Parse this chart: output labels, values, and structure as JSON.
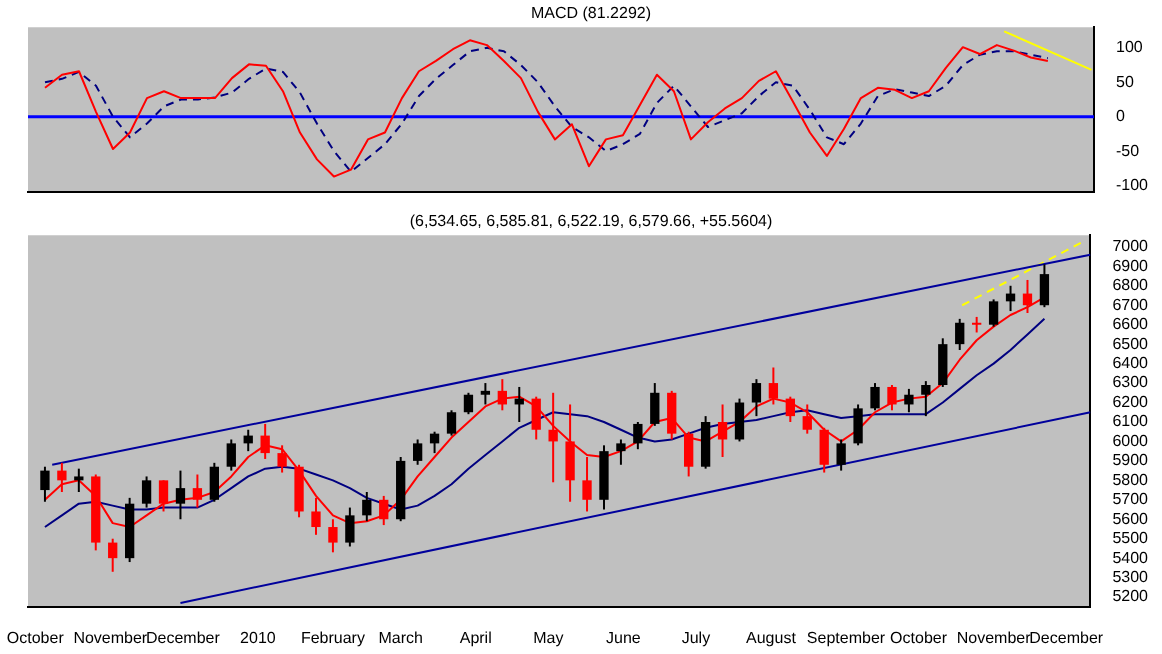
{
  "chart_data": [
    {
      "type": "line",
      "title": "MACD (81.2292)",
      "x": [
        "2009-10-05",
        "2009-10-12",
        "2009-10-19",
        "2009-10-26",
        "2009-11-02",
        "2009-11-09",
        "2009-11-16",
        "2009-11-23",
        "2009-11-30",
        "2009-12-07",
        "2009-12-14",
        "2009-12-21",
        "2009-12-28",
        "2010-01-04",
        "2010-01-11",
        "2010-01-18",
        "2010-01-25",
        "2010-02-01",
        "2010-02-08",
        "2010-02-15",
        "2010-02-22",
        "2010-03-01",
        "2010-03-08",
        "2010-03-15",
        "2010-03-22",
        "2010-03-29",
        "2010-04-05",
        "2010-04-12",
        "2010-04-19",
        "2010-04-26",
        "2010-05-03",
        "2010-05-10",
        "2010-05-17",
        "2010-05-24",
        "2010-05-31",
        "2010-06-07",
        "2010-06-14",
        "2010-06-21",
        "2010-06-28",
        "2010-07-05",
        "2010-07-12",
        "2010-07-19",
        "2010-07-26",
        "2010-08-02",
        "2010-08-09",
        "2010-08-16",
        "2010-08-23",
        "2010-08-30",
        "2010-09-06",
        "2010-09-13",
        "2010-09-20",
        "2010-09-27",
        "2010-10-04",
        "2010-10-11",
        "2010-10-18",
        "2010-10-25",
        "2010-11-01",
        "2010-11-08",
        "2010-11-15",
        "2010-11-22"
      ],
      "series": [
        {
          "color": "#ff0000",
          "values": [
            42,
            61,
            66,
            7,
            -47,
            -23,
            27,
            37,
            27,
            27,
            27,
            56,
            76,
            74,
            37,
            -23,
            -62,
            -87,
            -77,
            -33,
            -23,
            27,
            66,
            81,
            98,
            111,
            104,
            81,
            56,
            7,
            -33,
            -11,
            -72,
            -33,
            -27,
            17,
            61,
            37,
            -33,
            -8,
            12,
            27,
            52,
            66,
            22,
            -23,
            -57,
            -18,
            27,
            42,
            39,
            27,
            37,
            71,
            101,
            91,
            104,
            96,
            86,
            81
          ]
        },
        {
          "color": "#000080",
          "line_style": "dashed",
          "values": [
            50,
            55,
            65,
            45,
            0,
            -30,
            -10,
            15,
            25,
            25,
            28,
            35,
            55,
            70,
            65,
            35,
            -10,
            -50,
            -80,
            -60,
            -40,
            -10,
            30,
            55,
            75,
            95,
            100,
            95,
            75,
            50,
            15,
            -15,
            -30,
            -50,
            -40,
            -25,
            20,
            45,
            15,
            -15,
            -5,
            5,
            30,
            50,
            45,
            10,
            -30,
            -40,
            -10,
            30,
            40,
            35,
            30,
            45,
            75,
            90,
            95,
            95,
            90,
            85
          ]
        },
        {
          "color": "#ffff00",
          "x": [
            "2010-11-04",
            "2010-12-10"
          ],
          "values": [
            124,
            68
          ]
        }
      ],
      "ref_lines": [
        {
          "axis": "y",
          "value": 0,
          "color": "#0000ff"
        }
      ],
      "xlim": [
        "2009-09-28",
        "2010-12-11"
      ],
      "ylim": [
        -110,
        130
      ],
      "yticks": [
        -100,
        -50,
        0,
        50,
        100
      ],
      "tick_labels": "y",
      "legend": false,
      "grid": false
    },
    {
      "type": "candlestick",
      "title": "(6,534.65, 6,585.81, 6,522.19, 6,579.66, +55.5604)",
      "x": [
        "2009-10-05",
        "2009-10-12",
        "2009-10-19",
        "2009-10-26",
        "2009-11-02",
        "2009-11-09",
        "2009-11-16",
        "2009-11-23",
        "2009-11-30",
        "2009-12-07",
        "2009-12-14",
        "2009-12-21",
        "2009-12-28",
        "2010-01-04",
        "2010-01-11",
        "2010-01-18",
        "2010-01-25",
        "2010-02-01",
        "2010-02-08",
        "2010-02-15",
        "2010-02-22",
        "2010-03-01",
        "2010-03-08",
        "2010-03-15",
        "2010-03-22",
        "2010-03-29",
        "2010-04-05",
        "2010-04-12",
        "2010-04-19",
        "2010-04-26",
        "2010-05-03",
        "2010-05-10",
        "2010-05-17",
        "2010-05-24",
        "2010-05-31",
        "2010-06-07",
        "2010-06-14",
        "2010-06-21",
        "2010-06-28",
        "2010-07-05",
        "2010-07-12",
        "2010-07-19",
        "2010-07-26",
        "2010-08-02",
        "2010-08-09",
        "2010-08-16",
        "2010-08-23",
        "2010-08-30",
        "2010-09-06",
        "2010-09-13",
        "2010-09-20",
        "2010-09-27",
        "2010-10-04",
        "2010-10-11",
        "2010-10-18",
        "2010-10-25",
        "2010-11-01",
        "2010-11-08",
        "2010-11-15",
        "2010-11-22"
      ],
      "ohlc": [
        [
          5750,
          5870,
          5690,
          5850
        ],
        [
          5850,
          5890,
          5740,
          5800
        ],
        [
          5800,
          5860,
          5740,
          5820
        ],
        [
          5820,
          5830,
          5440,
          5480
        ],
        [
          5480,
          5500,
          5330,
          5400
        ],
        [
          5400,
          5710,
          5380,
          5680
        ],
        [
          5680,
          5820,
          5660,
          5800
        ],
        [
          5800,
          5800,
          5640,
          5680
        ],
        [
          5680,
          5850,
          5600,
          5760
        ],
        [
          5760,
          5830,
          5660,
          5700
        ],
        [
          5700,
          5890,
          5690,
          5870
        ],
        [
          5870,
          6010,
          5850,
          5990
        ],
        [
          5990,
          6060,
          5950,
          6030
        ],
        [
          6030,
          6090,
          5910,
          5940
        ],
        [
          5940,
          5980,
          5840,
          5870
        ],
        [
          5870,
          5880,
          5610,
          5640
        ],
        [
          5640,
          5710,
          5520,
          5560
        ],
        [
          5560,
          5600,
          5430,
          5480
        ],
        [
          5480,
          5660,
          5460,
          5620
        ],
        [
          5620,
          5740,
          5590,
          5700
        ],
        [
          5700,
          5720,
          5570,
          5600
        ],
        [
          5600,
          5920,
          5590,
          5900
        ],
        [
          5900,
          6010,
          5880,
          5990
        ],
        [
          5990,
          6050,
          5940,
          6040
        ],
        [
          6040,
          6160,
          6030,
          6150
        ],
        [
          6150,
          6250,
          6140,
          6240
        ],
        [
          6240,
          6300,
          6190,
          6260
        ],
        [
          6260,
          6320,
          6160,
          6190
        ],
        [
          6190,
          6280,
          6100,
          6220
        ],
        [
          6220,
          6230,
          6010,
          6060
        ],
        [
          6060,
          6250,
          5790,
          6000
        ],
        [
          6000,
          6190,
          5690,
          5800
        ],
        [
          5800,
          5920,
          5640,
          5700
        ],
        [
          5700,
          5980,
          5650,
          5950
        ],
        [
          5950,
          6010,
          5880,
          5990
        ],
        [
          5990,
          6100,
          5960,
          6090
        ],
        [
          6090,
          6300,
          6080,
          6250
        ],
        [
          6250,
          6260,
          6010,
          6040
        ],
        [
          6040,
          6050,
          5820,
          5870
        ],
        [
          5870,
          6130,
          5860,
          6100
        ],
        [
          6100,
          6190,
          5920,
          6010
        ],
        [
          6010,
          6220,
          6000,
          6200
        ],
        [
          6200,
          6320,
          6130,
          6300
        ],
        [
          6300,
          6380,
          6190,
          6220
        ],
        [
          6220,
          6230,
          6100,
          6130
        ],
        [
          6130,
          6190,
          6040,
          6060
        ],
        [
          6060,
          6070,
          5840,
          5880
        ],
        [
          5880,
          6010,
          5850,
          5990
        ],
        [
          5990,
          6190,
          5980,
          6170
        ],
        [
          6170,
          6300,
          6160,
          6280
        ],
        [
          6280,
          6290,
          6160,
          6190
        ],
        [
          6190,
          6270,
          6150,
          6240
        ],
        [
          6240,
          6310,
          6130,
          6290
        ],
        [
          6290,
          6530,
          6280,
          6500
        ],
        [
          6500,
          6630,
          6470,
          6610
        ],
        [
          6610,
          6640,
          6560,
          6600
        ],
        [
          6600,
          6730,
          6590,
          6720
        ],
        [
          6720,
          6800,
          6670,
          6760
        ],
        [
          6760,
          6830,
          6660,
          6700
        ],
        [
          6700,
          6910,
          6690,
          6860
        ]
      ],
      "colors": [
        "#000000",
        "#ff0000",
        "#000000",
        "#ff0000",
        "#ff0000",
        "#000000",
        "#000000",
        "#ff0000",
        "#000000",
        "#ff0000",
        "#000000",
        "#000000",
        "#000000",
        "#ff0000",
        "#ff0000",
        "#ff0000",
        "#ff0000",
        "#ff0000",
        "#000000",
        "#000000",
        "#ff0000",
        "#000000",
        "#000000",
        "#000000",
        "#000000",
        "#000000",
        "#000000",
        "#ff0000",
        "#000000",
        "#ff0000",
        "#ff0000",
        "#ff0000",
        "#ff0000",
        "#000000",
        "#000000",
        "#000000",
        "#000000",
        "#ff0000",
        "#ff0000",
        "#000000",
        "#ff0000",
        "#000000",
        "#000000",
        "#ff0000",
        "#ff0000",
        "#ff0000",
        "#ff0000",
        "#000000",
        "#000000",
        "#000000",
        "#ff0000",
        "#000000",
        "#000000",
        "#000000",
        "#000000",
        "#ff0000",
        "#000000",
        "#000000",
        "#ff0000",
        "#000000"
      ],
      "series": [
        {
          "type": "line",
          "color": "#ff0000",
          "values": [
            5700,
            5780,
            5800,
            5720,
            5580,
            5560,
            5620,
            5680,
            5700,
            5710,
            5740,
            5820,
            5920,
            5980,
            5960,
            5850,
            5720,
            5620,
            5580,
            5590,
            5620,
            5700,
            5820,
            5920,
            6020,
            6100,
            6180,
            6220,
            6230,
            6180,
            6080,
            6000,
            5930,
            5920,
            5950,
            6000,
            6100,
            6120,
            6020,
            6000,
            6050,
            6100,
            6180,
            6220,
            6200,
            6150,
            6060,
            6000,
            6060,
            6150,
            6200,
            6220,
            6230,
            6300,
            6420,
            6520,
            6590,
            6650,
            6690,
            6740
          ]
        },
        {
          "type": "line",
          "color": "#000080",
          "values": [
            5560,
            5620,
            5680,
            5690,
            5670,
            5650,
            5650,
            5660,
            5660,
            5660,
            5700,
            5760,
            5820,
            5860,
            5870,
            5860,
            5830,
            5800,
            5760,
            5710,
            5680,
            5650,
            5670,
            5720,
            5780,
            5860,
            5930,
            6000,
            6070,
            6110,
            6150,
            6140,
            6130,
            6100,
            6060,
            6020,
            6000,
            6010,
            6040,
            6070,
            6090,
            6100,
            6110,
            6130,
            6150,
            6160,
            6140,
            6120,
            6130,
            6140,
            6140,
            6140,
            6140,
            6200,
            6270,
            6340,
            6400,
            6470,
            6550,
            6630
          ]
        },
        {
          "type": "line",
          "color": "#00009c",
          "x": [
            "2009-10-08",
            "2010-12-11"
          ],
          "values": [
            5880,
            6960
          ]
        },
        {
          "type": "line",
          "color": "#00009c",
          "x": [
            "2009-11-30",
            "2010-12-11"
          ],
          "values": [
            5170,
            6150
          ]
        },
        {
          "type": "line",
          "color": "#ffff00",
          "line_style": "dashed",
          "x": [
            "2010-10-19",
            "2010-12-07"
          ],
          "values": [
            6700,
            7020
          ]
        }
      ],
      "xlim": [
        "2009-09-28",
        "2010-12-11"
      ],
      "xticks": [
        {
          "value": "2009-10-01",
          "label": "October"
        },
        {
          "value": "2009-11-01",
          "label": "November"
        },
        {
          "value": "2009-12-01",
          "label": "December"
        },
        {
          "value": "2010-01-01",
          "label": "2010"
        },
        {
          "value": "2010-02-01",
          "label": "February"
        },
        {
          "value": "2010-03-01",
          "label": "March"
        },
        {
          "value": "2010-04-01",
          "label": "April"
        },
        {
          "value": "2010-05-01",
          "label": "May"
        },
        {
          "value": "2010-06-01",
          "label": "June"
        },
        {
          "value": "2010-07-01",
          "label": "July"
        },
        {
          "value": "2010-08-01",
          "label": "August"
        },
        {
          "value": "2010-09-01",
          "label": "September"
        },
        {
          "value": "2010-10-01",
          "label": "October"
        },
        {
          "value": "2010-11-01",
          "label": "November"
        },
        {
          "value": "2010-12-01",
          "label": "December"
        }
      ],
      "ylim": [
        5150,
        7060
      ],
      "yticks": [
        5200,
        5300,
        5400,
        5500,
        5600,
        5700,
        5800,
        5900,
        6000,
        6100,
        6200,
        6300,
        6400,
        6500,
        6600,
        6700,
        6800,
        6900,
        7000
      ],
      "legend": false,
      "grid": false
    }
  ]
}
